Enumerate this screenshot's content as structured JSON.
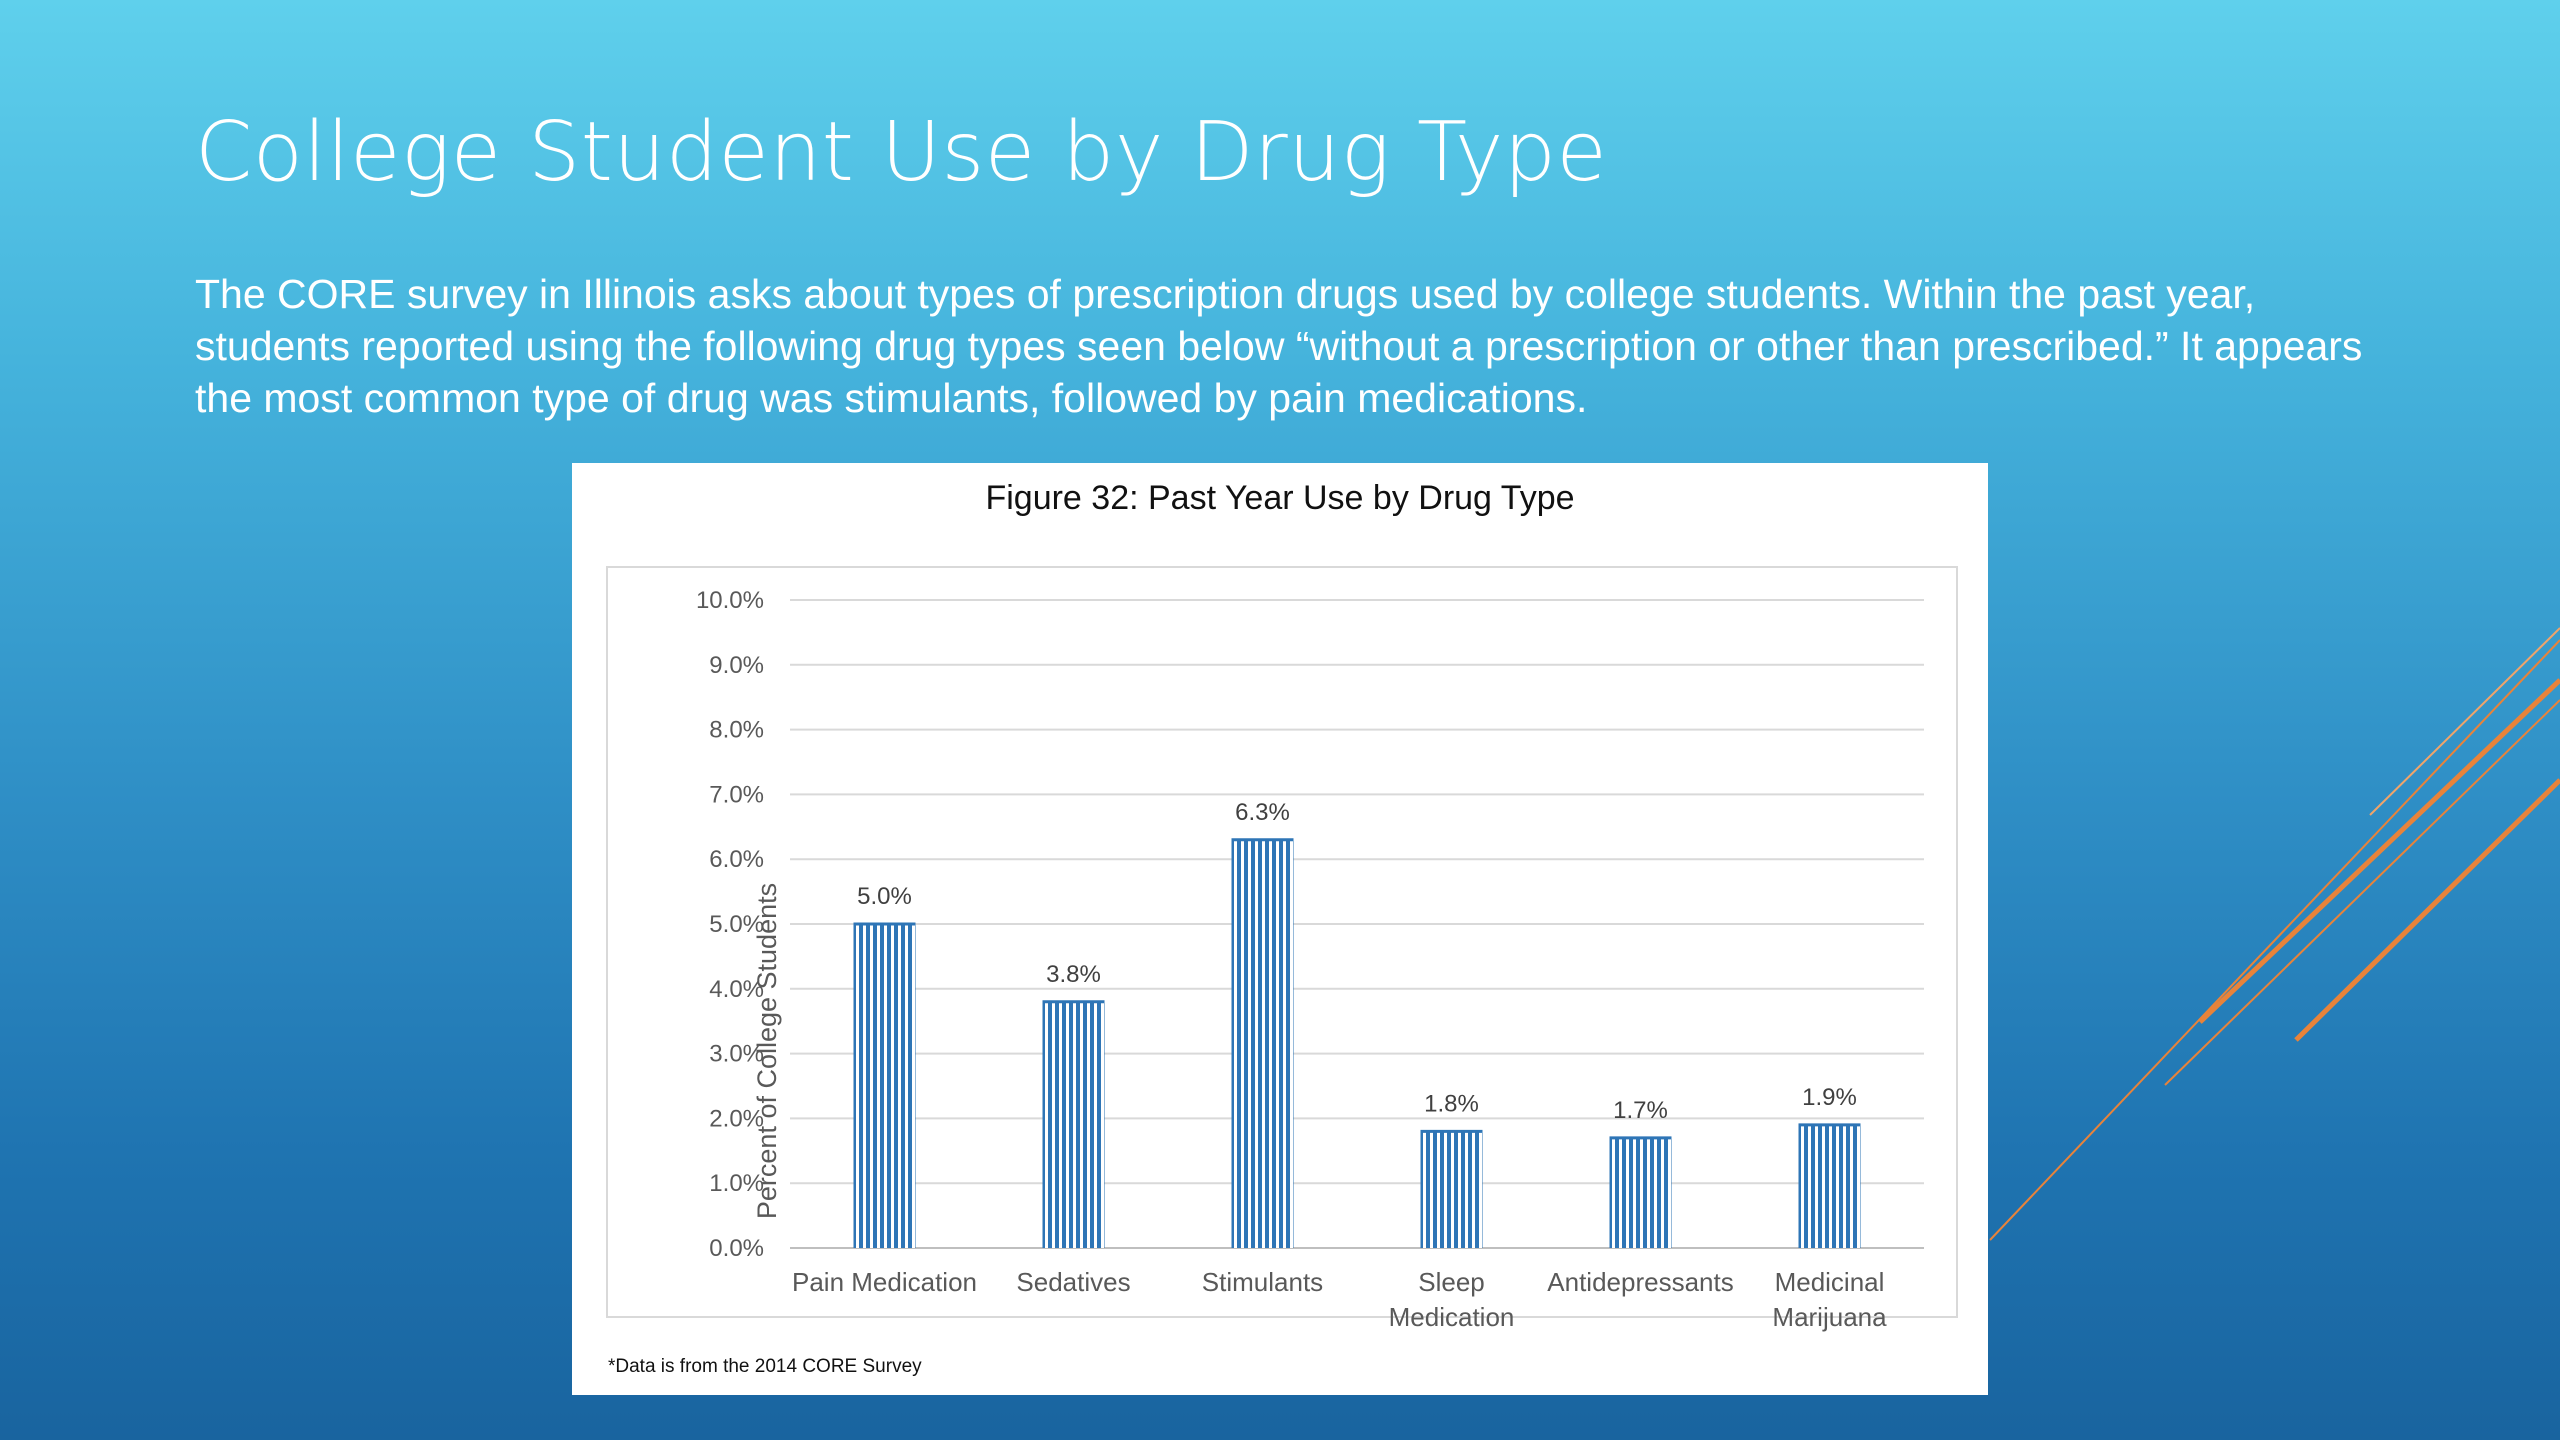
{
  "slide": {
    "title": "College Student Use by Drug Type",
    "body": "The CORE survey in Illinois asks about types of prescription drugs used by college students. Within the past year, students reported using the following drug types seen below “without a prescription or other than prescribed.” It appears the most common type of drug was stimulants, followed by pain medications."
  },
  "colors": {
    "bar": "#2e75b6",
    "accent_lines": "#e8833a"
  },
  "chart_data": {
    "type": "bar",
    "title": "Figure 32: Past Year Use by Drug Type",
    "xlabel": "",
    "ylabel": "Percent of College Students",
    "categories": [
      "Pain Medication",
      "Sedatives",
      "Stimulants",
      "Sleep Medication",
      "Antidepressants",
      "Medicinal Marijuana"
    ],
    "category_lines": [
      [
        "Pain Medication"
      ],
      [
        "Sedatives"
      ],
      [
        "Stimulants"
      ],
      [
        "Sleep",
        "Medication"
      ],
      [
        "Antidepressants"
      ],
      [
        "Medicinal",
        "Marijuana"
      ]
    ],
    "values": [
      5.0,
      3.8,
      6.3,
      1.8,
      1.7,
      1.9
    ],
    "data_labels": [
      "5.0%",
      "3.8%",
      "6.3%",
      "1.8%",
      "1.7%",
      "1.9%"
    ],
    "ylim": [
      0,
      10
    ],
    "yticks": [
      "0.0%",
      "1.0%",
      "2.0%",
      "3.0%",
      "4.0%",
      "5.0%",
      "6.0%",
      "7.0%",
      "8.0%",
      "9.0%",
      "10.0%"
    ],
    "grid": true,
    "bar_pattern": "vertical-stripes",
    "footnote": "*Data is from the 2014 CORE Survey"
  }
}
